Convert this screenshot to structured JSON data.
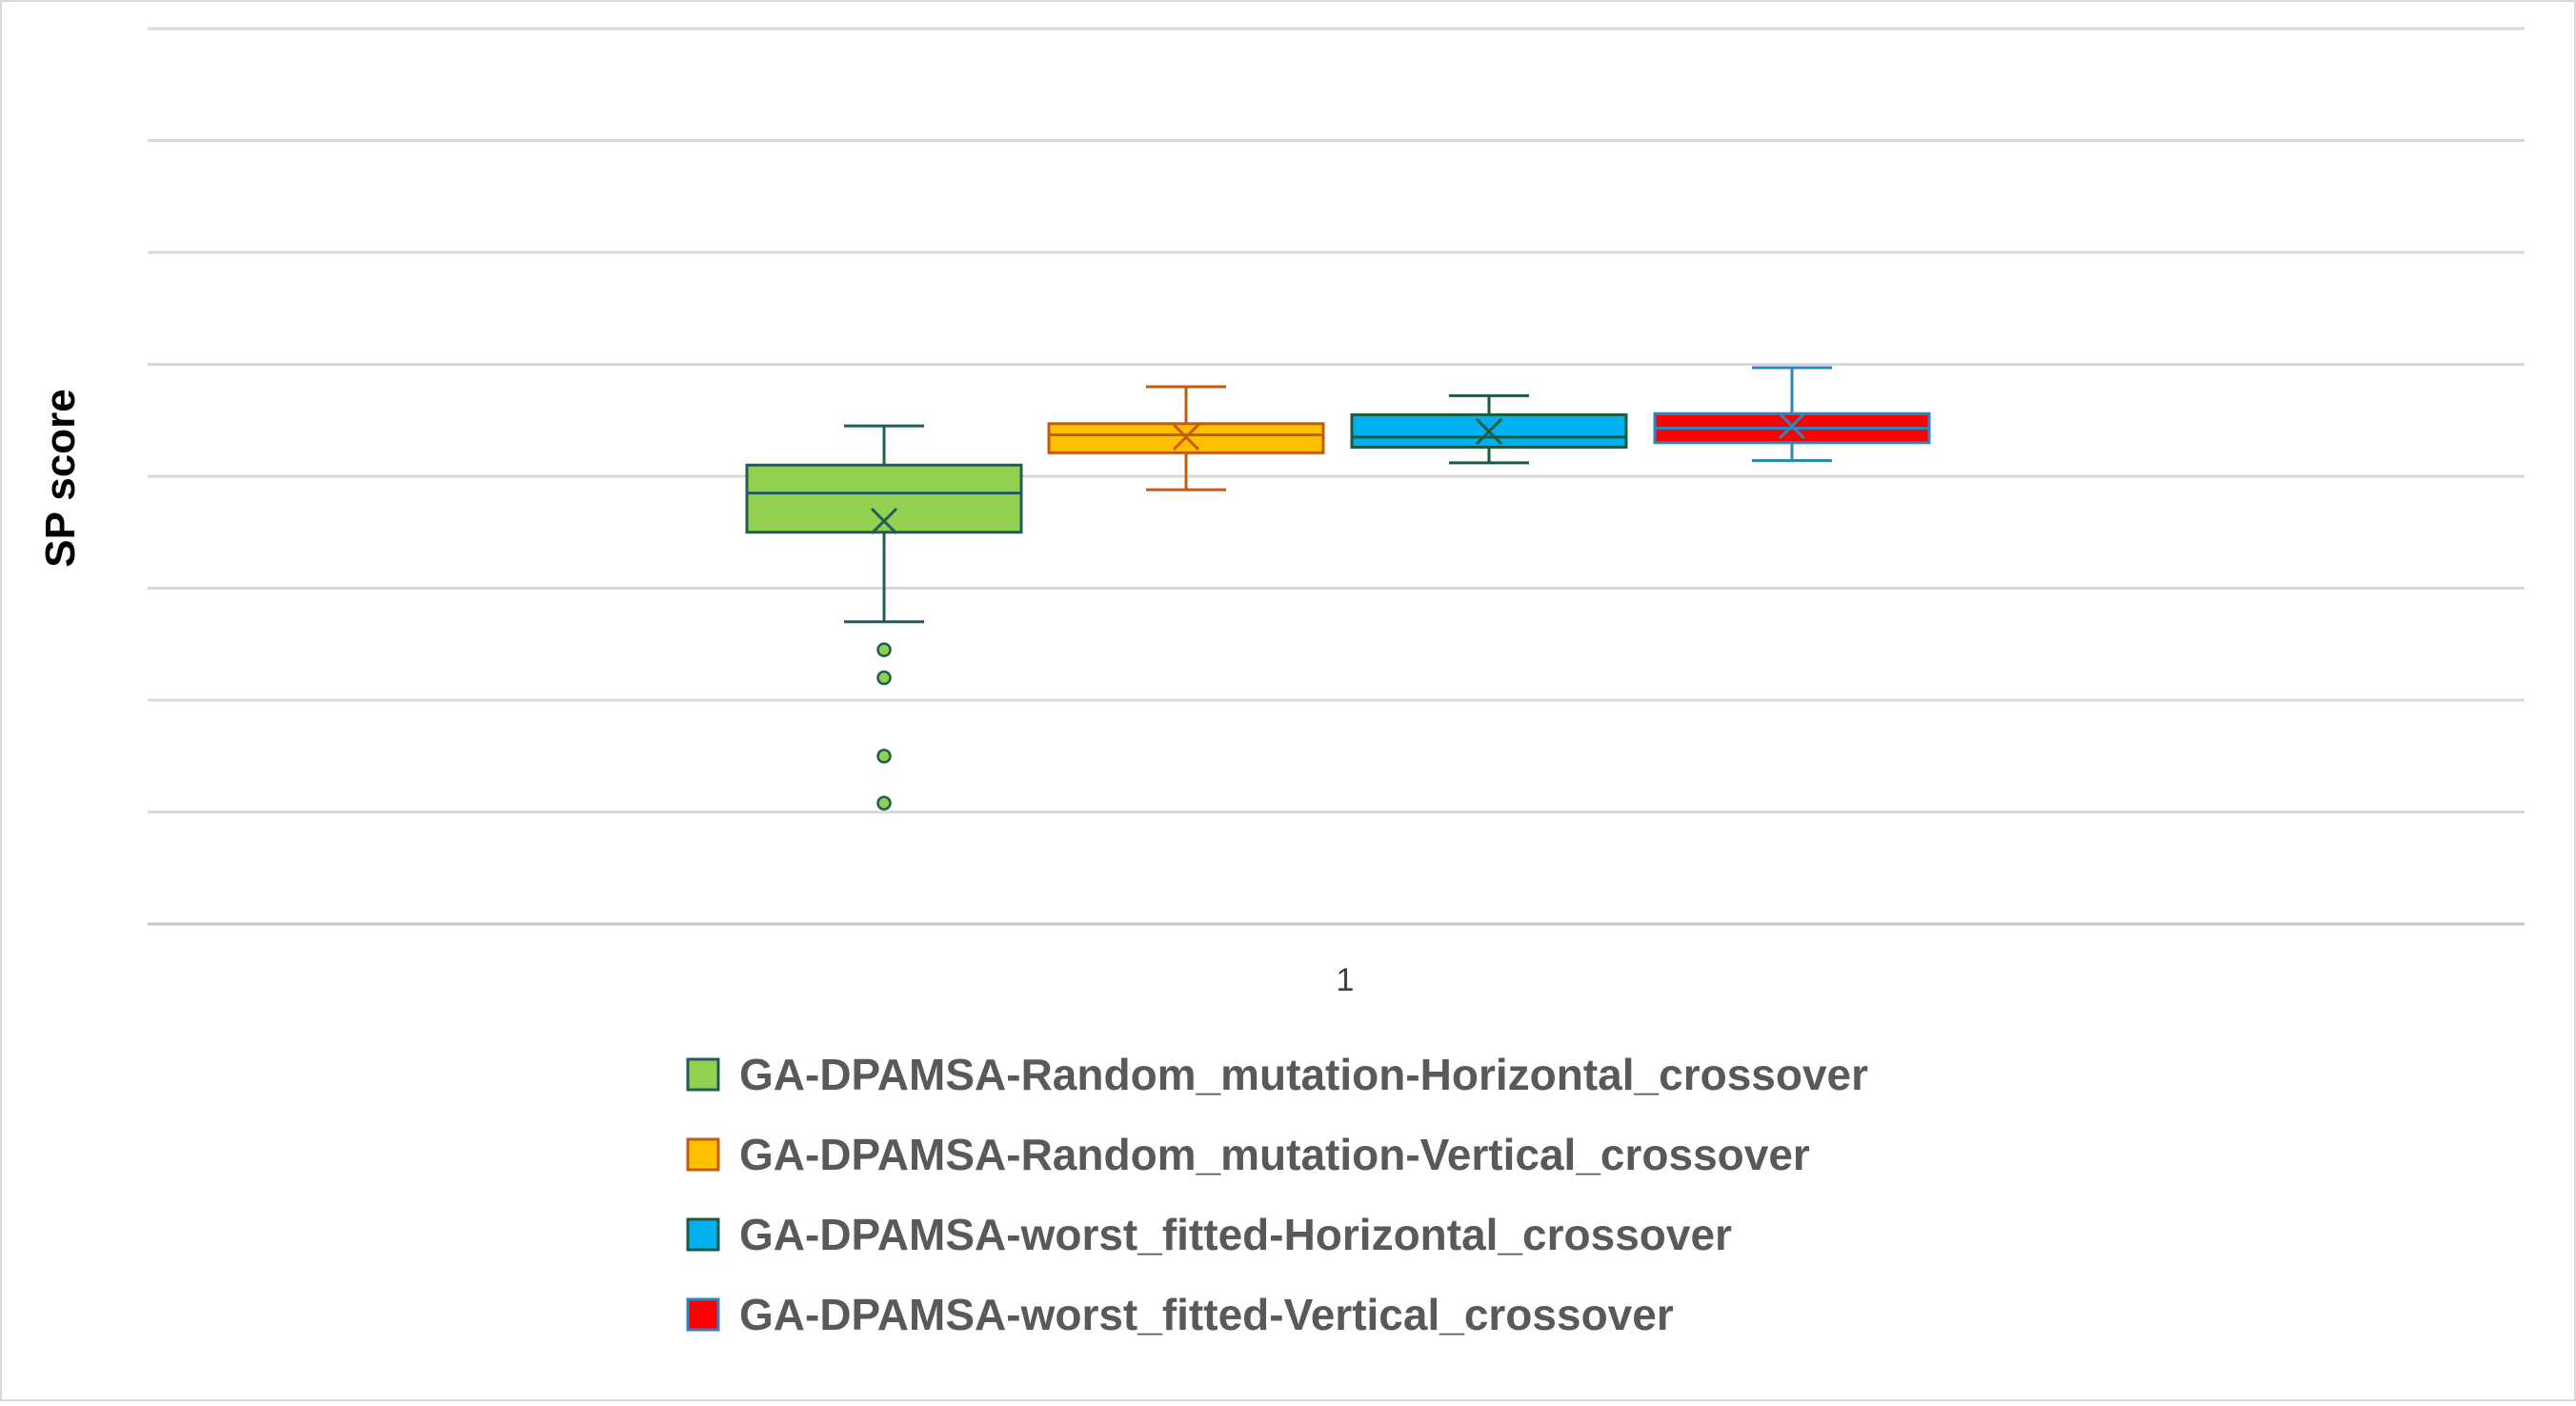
{
  "chart_data": {
    "type": "boxplot",
    "ylabel": "SP score",
    "xlabel": "",
    "categories": [
      "1"
    ],
    "y_tick_labels_visible": false,
    "grid": true,
    "legend_position": "bottom",
    "ylim": [
      0,
      8
    ],
    "series": [
      {
        "name": "GA-DPAMSA-Random_mutation-Horizontal_crossover",
        "color": "#92d050",
        "edge_color": "#1f5c5c",
        "whisker_low": 2.7,
        "q1": 3.5,
        "median": 3.85,
        "q3": 4.1,
        "whisker_high": 4.45,
        "mean": 3.6,
        "outliers": [
          2.45,
          2.2,
          1.5,
          1.08
        ]
      },
      {
        "name": "GA-DPAMSA-Random_mutation-Vertical_crossover",
        "color": "#ffc000",
        "edge_color": "#c55a11",
        "whisker_low": 3.88,
        "q1": 4.21,
        "median": 4.37,
        "q3": 4.47,
        "whisker_high": 4.8,
        "mean": 4.35,
        "outliers": []
      },
      {
        "name": "GA-DPAMSA-worst_fitted-Horizontal_crossover",
        "color": "#00b0f0",
        "edge_color": "#1e5a3c",
        "whisker_low": 4.12,
        "q1": 4.26,
        "median": 4.35,
        "q3": 4.55,
        "whisker_high": 4.72,
        "mean": 4.4,
        "outliers": []
      },
      {
        "name": "GA-DPAMSA-worst_fitted-Vertical_crossover",
        "color": "#ff0000",
        "edge_color": "#2e86c1",
        "whisker_low": 4.14,
        "q1": 4.3,
        "median": 4.43,
        "q3": 4.56,
        "whisker_high": 4.97,
        "mean": 4.45,
        "outliers": []
      }
    ]
  }
}
